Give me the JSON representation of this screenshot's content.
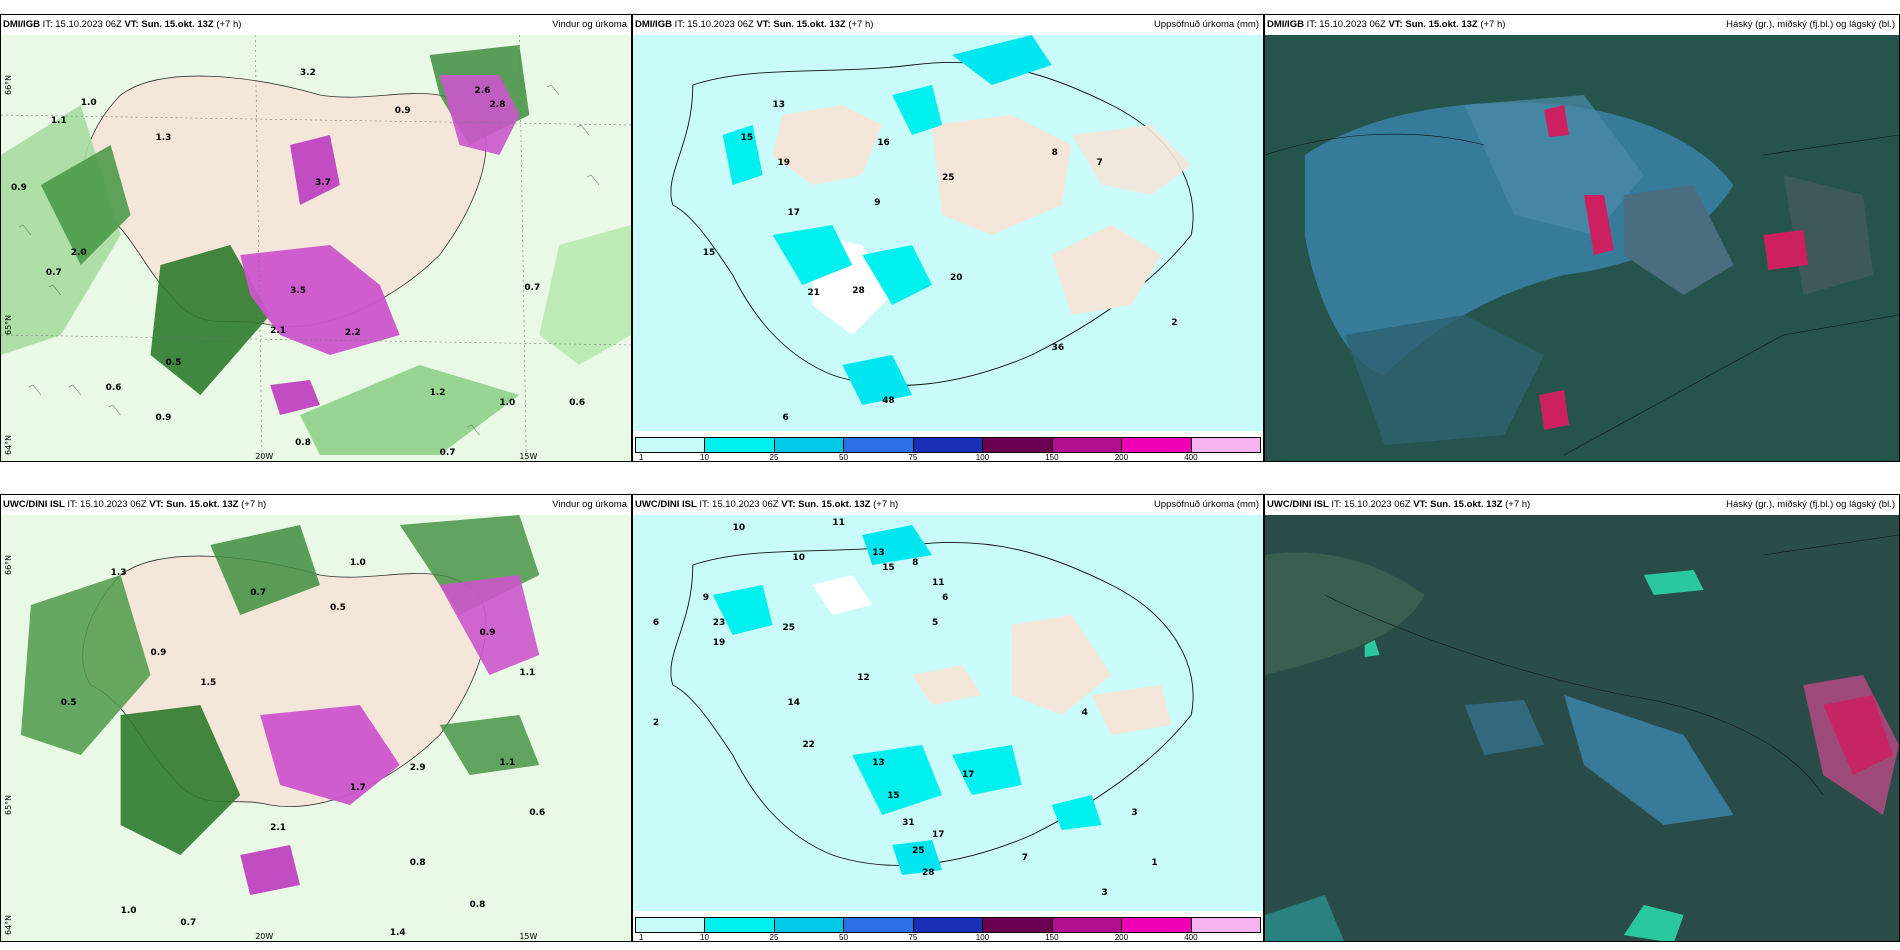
{
  "panels": [
    {
      "model": "DMI/IGB",
      "issue": "IT: 15.10.2023 06Z",
      "valid": "VT: Sun. 15.okt. 13Z",
      "lead": "(+7 h)",
      "product": "Vindur og úrkoma",
      "values": [
        "3.2",
        "1.0",
        "1.1",
        "1.3",
        "0.9",
        "2.0",
        "3.7",
        "3.5",
        "2.2",
        "2.1",
        "0.5",
        "0.6",
        "0.9",
        "0.8",
        "0.7",
        "1.2",
        "1.0",
        "0.7",
        "0.6",
        "2.6",
        "2.8",
        "0.9",
        "0.7"
      ],
      "axis_labels": [
        "66°N",
        "65°N",
        "64°N",
        "20W",
        "15W"
      ]
    },
    {
      "model": "DMI/IGB",
      "issue": "IT: 15.10.2023 06Z",
      "valid": "VT: Sun. 15.okt. 13Z",
      "lead": "(+7 h)",
      "product": "Uppsöfnuð úrkoma (mm)",
      "values": [
        "13",
        "15",
        "19",
        "17",
        "21",
        "28",
        "16",
        "25",
        "8",
        "7",
        "9",
        "15",
        "20",
        "2",
        "6",
        "48",
        "36"
      ]
    },
    {
      "model": "DMI/IGB",
      "issue": "IT: 15.10.2023 06Z",
      "valid": "VT: Sun. 15.okt. 13Z",
      "lead": "(+7 h)",
      "product": "Háský (gr.), miðský (fj.bl.) og lágský (bl.)"
    },
    {
      "model": "UWC/DINI ISL",
      "issue": "IT: 15.10.2023 06Z",
      "valid": "VT: Sun. 15.okt. 13Z",
      "lead": "(+7 h)",
      "product": "Vindur og úrkoma",
      "values": [
        "0.5",
        "0.7",
        "1.0",
        "1.3",
        "0.9",
        "2.1",
        "1.5",
        "0.8",
        "1.1",
        "0.6",
        "0.7",
        "1.0",
        "1.4",
        "0.8",
        "1.7",
        "2.9",
        "0.5",
        "0.9",
        "1.1"
      ],
      "axis_labels": [
        "66°N",
        "65°N",
        "64°N",
        "20W",
        "15W"
      ]
    },
    {
      "model": "UWC/DINI ISL",
      "issue": "IT: 15.10.2023 06Z",
      "valid": "VT: Sun. 15.okt. 13Z",
      "lead": "(+7 h)",
      "product": "Uppsöfnuð úrkoma (mm)",
      "values": [
        "10",
        "11",
        "10",
        "13",
        "15",
        "8",
        "11",
        "6",
        "9",
        "23",
        "25",
        "19",
        "5",
        "12",
        "6",
        "4",
        "3",
        "2",
        "14",
        "22",
        "13",
        "15",
        "17",
        "31",
        "17",
        "25",
        "28",
        "7",
        "1",
        "3"
      ]
    },
    {
      "model": "UWC/DINI ISL",
      "issue": "IT: 15.10.2023 06Z",
      "valid": "VT: Sun. 15.okt. 13Z",
      "lead": "(+7 h)",
      "product": "Háský (gr.), miðský (fj.bl.) og lágský (bl.)"
    }
  ],
  "colorbar": {
    "colors": [
      "#c9fbfb",
      "#00f0f0",
      "#00c8e6",
      "#2b6fe8",
      "#1a2fb4",
      "#6a0050",
      "#b0108e",
      "#f000b4",
      "#f5b4f0"
    ],
    "ticks": [
      "1",
      "10",
      "25",
      "50",
      "75",
      "100",
      "150",
      "200",
      "400"
    ]
  },
  "colors": {
    "land": "#f4e6d8",
    "precip_light": "#ccf5cc",
    "precip_mid": "#6fbf6f",
    "precip_dark": "#146414",
    "precip_heavy": "#cc44cc",
    "cloud_bg": "#24544c",
    "cloud_blue": "#3a82a8",
    "cloud_alert": "#cc2060"
  }
}
